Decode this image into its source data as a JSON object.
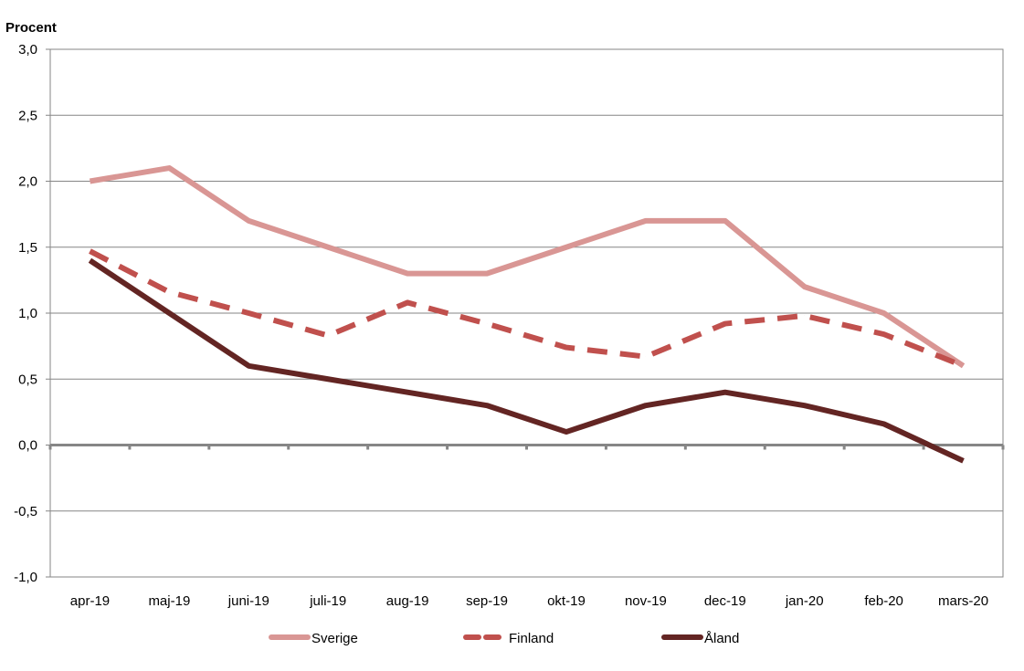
{
  "chart_data": {
    "type": "line",
    "ylabel": "Procent",
    "ylim": [
      -1.0,
      3.0
    ],
    "yticks": [
      "3,0",
      "2,5",
      "2,0",
      "1,5",
      "1,0",
      "0,5",
      "0,0",
      "-0,5",
      "-1,0"
    ],
    "ytick_values": [
      3.0,
      2.5,
      2.0,
      1.5,
      1.0,
      0.5,
      0.0,
      -0.5,
      -1.0
    ],
    "categories": [
      "apr-19",
      "maj-19",
      "juni-19",
      "juli-19",
      "aug-19",
      "sep-19",
      "okt-19",
      "nov-19",
      "dec-19",
      "jan-20",
      "feb-20",
      "mars-20"
    ],
    "grid": true,
    "legend_placement": "bottom",
    "series": [
      {
        "name": "Sverige",
        "color": "#d99694",
        "style": "solid",
        "values": [
          2.0,
          2.1,
          1.7,
          1.5,
          1.3,
          1.3,
          1.5,
          1.7,
          1.7,
          1.2,
          1.0,
          0.6
        ]
      },
      {
        "name": "Finland",
        "color": "#c0504d",
        "style": "dashed",
        "values": [
          1.47,
          1.16,
          1.0,
          0.83,
          1.08,
          0.92,
          0.74,
          0.67,
          0.92,
          0.98,
          0.84,
          0.6
        ]
      },
      {
        "name": "Åland",
        "color": "#632523",
        "style": "solid",
        "values": [
          1.4,
          1.0,
          0.6,
          0.5,
          0.4,
          0.3,
          0.1,
          0.3,
          0.4,
          0.3,
          0.16,
          -0.12
        ]
      }
    ]
  }
}
